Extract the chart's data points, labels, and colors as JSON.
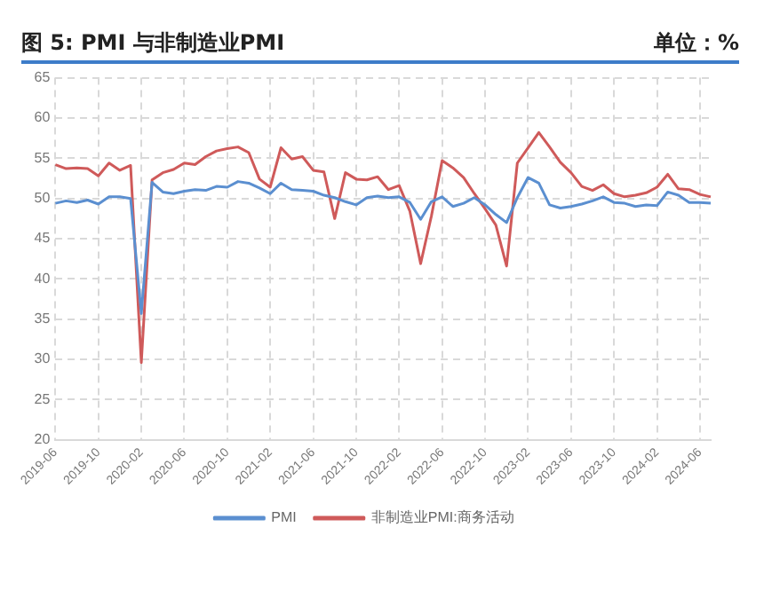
{
  "chart_data": {
    "type": "line",
    "title": "图 5:    PMI 与非制造业PMI",
    "ylabel": "单位：%",
    "categories": [
      "2019-06",
      null,
      null,
      null,
      "2019-10",
      null,
      null,
      null,
      "2020-02",
      null,
      null,
      null,
      "2020-06",
      null,
      null,
      null,
      "2020-10",
      null,
      null,
      null,
      "2021-02",
      null,
      null,
      null,
      "2021-06",
      null,
      null,
      null,
      "2021-10",
      null,
      null,
      null,
      "2022-02",
      null,
      null,
      null,
      "2022-06",
      null,
      null,
      null,
      "2022-10",
      null,
      null,
      null,
      "2023-02",
      null,
      null,
      null,
      "2023-06",
      null,
      null,
      null,
      "2023-10",
      null,
      null,
      null,
      "2024-02",
      null,
      null,
      null,
      "2024-06",
      null
    ],
    "series": [
      {
        "name": "PMI",
        "color": "#5b8fd0",
        "values": [
          49.4,
          49.7,
          49.5,
          49.8,
          49.3,
          50.2,
          50.2,
          50.0,
          35.7,
          52.0,
          50.8,
          50.6,
          50.9,
          51.1,
          51.0,
          51.5,
          51.4,
          52.1,
          51.9,
          51.3,
          50.6,
          51.9,
          51.1,
          51.0,
          50.9,
          50.4,
          50.1,
          49.6,
          49.2,
          50.1,
          50.3,
          50.1,
          50.2,
          49.5,
          47.4,
          49.6,
          50.2,
          49.0,
          49.4,
          50.1,
          49.2,
          48.0,
          47.0,
          50.1,
          52.6,
          51.9,
          49.2,
          48.8,
          49.0,
          49.3,
          49.7,
          50.2,
          49.5,
          49.4,
          49.0,
          49.2,
          49.1,
          50.8,
          50.4,
          49.5,
          49.5,
          49.4
        ]
      },
      {
        "name": "非制造业PMI:商务活动",
        "color": "#cf5a5a",
        "values": [
          54.2,
          53.7,
          53.8,
          53.7,
          52.8,
          54.4,
          53.5,
          54.1,
          29.6,
          52.3,
          53.2,
          53.6,
          54.4,
          54.2,
          55.2,
          55.9,
          56.2,
          56.4,
          55.7,
          52.4,
          51.4,
          56.3,
          54.9,
          55.2,
          53.5,
          53.3,
          47.5,
          53.2,
          52.4,
          52.3,
          52.7,
          51.1,
          51.6,
          48.4,
          41.9,
          47.8,
          54.7,
          53.8,
          52.6,
          50.6,
          48.7,
          46.7,
          41.6,
          54.4,
          56.3,
          58.2,
          56.4,
          54.5,
          53.2,
          51.5,
          51.0,
          51.7,
          50.6,
          50.2,
          50.4,
          50.7,
          51.4,
          53.0,
          51.2,
          51.1,
          50.5,
          50.2
        ]
      }
    ],
    "ylim": [
      20,
      65
    ],
    "yticks": [
      20,
      25,
      30,
      35,
      40,
      45,
      50,
      55,
      60,
      65
    ],
    "grid": true,
    "legend": "bottom"
  }
}
